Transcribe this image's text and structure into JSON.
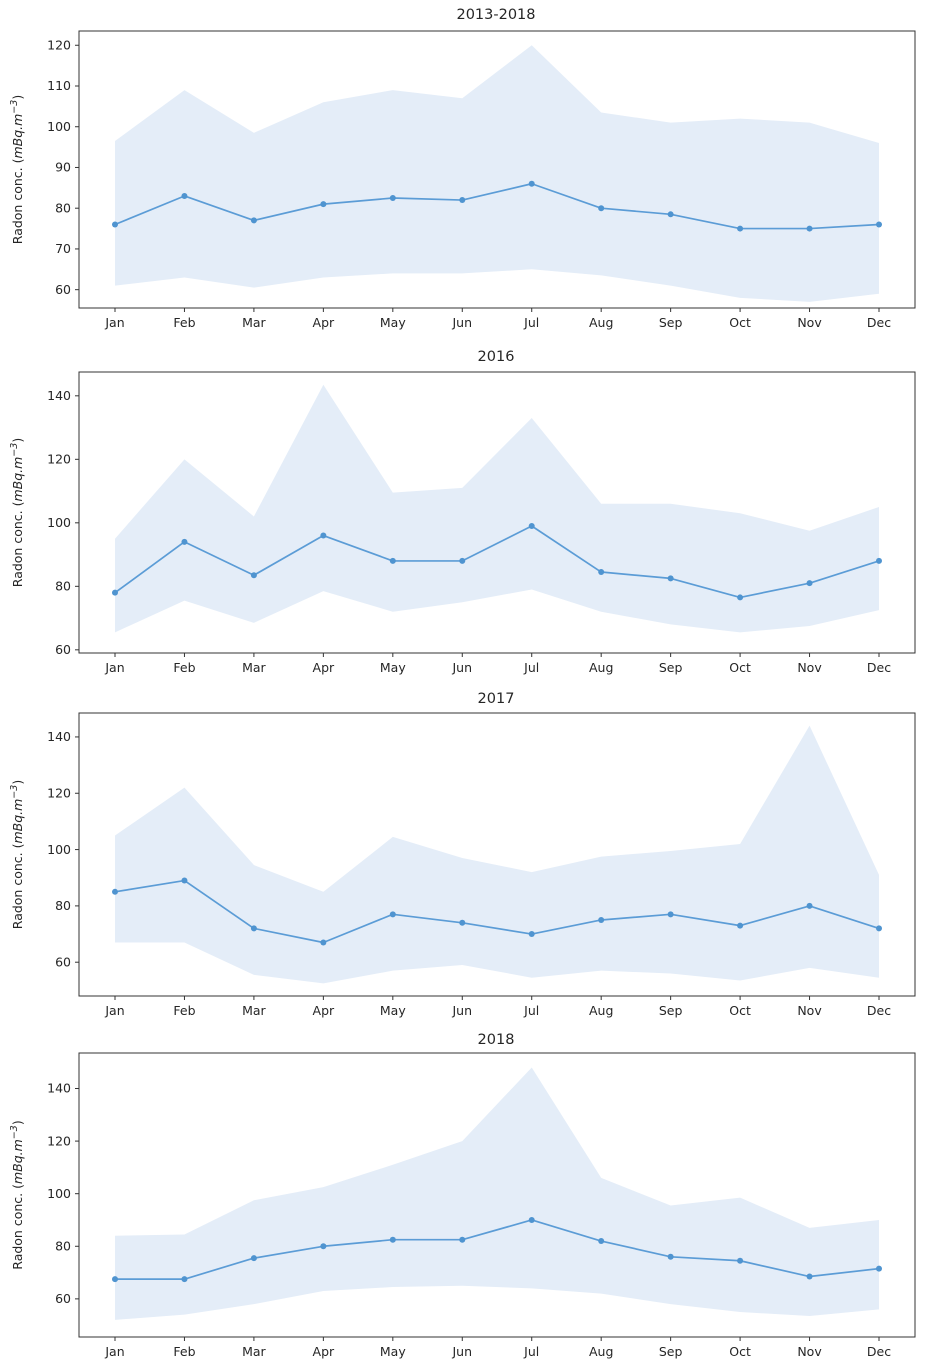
{
  "figure": {
    "background": "#ffffff",
    "description": "Four stacked line charts of monthly radon concentration with shaded min-max confidence bands"
  },
  "style": {
    "line_color": "#5b9cd6",
    "marker_color": "#4f94d0",
    "band_color": "#e4edf8",
    "spine_color": "#333333",
    "text_color": "#262626"
  },
  "ylabel_parts": {
    "prefix": "Radon conc. (",
    "italic": "mBq.m",
    "superscript": "−3",
    "suffix": ")"
  },
  "chart_data": [
    {
      "type": "line",
      "title": "2013-2018",
      "xlabel": "",
      "ylabel": "Radon conc. (mBq.m−3)",
      "categories": [
        "Jan",
        "Feb",
        "Mar",
        "Apr",
        "May",
        "Jun",
        "Jul",
        "Aug",
        "Sep",
        "Oct",
        "Nov",
        "Dec"
      ],
      "series": [
        {
          "name": "mean",
          "values": [
            76,
            83,
            77,
            81,
            82.5,
            82,
            86,
            80,
            78.5,
            75,
            75,
            76
          ]
        },
        {
          "name": "upper_bound",
          "values": [
            96.5,
            109,
            98.5,
            106,
            109,
            107,
            120,
            103.5,
            101,
            102,
            101,
            96
          ]
        },
        {
          "name": "lower_bound",
          "values": [
            61,
            63,
            60.5,
            63,
            64,
            64,
            65,
            63.5,
            61,
            58,
            57,
            59
          ]
        }
      ],
      "yticks": [
        60,
        70,
        80,
        90,
        100,
        110,
        120
      ],
      "ylim": [
        55.5,
        123.5
      ],
      "grid": false,
      "legend": "none",
      "band": "shaded area between lower_bound and upper_bound"
    },
    {
      "type": "line",
      "title": "2016",
      "xlabel": "",
      "ylabel": "Radon conc. (mBq.m−3)",
      "categories": [
        "Jan",
        "Feb",
        "Mar",
        "Apr",
        "May",
        "Jun",
        "Jul",
        "Aug",
        "Sep",
        "Oct",
        "Nov",
        "Dec"
      ],
      "series": [
        {
          "name": "mean",
          "values": [
            78,
            94,
            83.5,
            96,
            88,
            88,
            99,
            84.5,
            82.5,
            76.5,
            81,
            88
          ]
        },
        {
          "name": "upper_bound",
          "values": [
            95,
            120,
            102,
            143.5,
            109.5,
            111,
            133,
            106,
            106,
            103,
            97.5,
            105
          ]
        },
        {
          "name": "lower_bound",
          "values": [
            65.5,
            75.5,
            68.5,
            78.5,
            72,
            75,
            79,
            72,
            68,
            65.5,
            67.5,
            72.5
          ]
        }
      ],
      "yticks": [
        60,
        80,
        100,
        120,
        140
      ],
      "ylim": [
        59,
        147.5
      ],
      "grid": false,
      "legend": "none",
      "band": "shaded area between lower_bound and upper_bound"
    },
    {
      "type": "line",
      "title": "2017",
      "xlabel": "",
      "ylabel": "Radon conc. (mBq.m−3)",
      "categories": [
        "Jan",
        "Feb",
        "Mar",
        "Apr",
        "May",
        "Jun",
        "Jul",
        "Aug",
        "Sep",
        "Oct",
        "Nov",
        "Dec"
      ],
      "series": [
        {
          "name": "mean",
          "values": [
            85,
            89,
            72,
            67,
            77,
            74,
            70,
            75,
            77,
            73,
            80,
            72
          ]
        },
        {
          "name": "upper_bound",
          "values": [
            105,
            122,
            94.5,
            85,
            104.5,
            97,
            92,
            97.5,
            99.5,
            102,
            144,
            91
          ]
        },
        {
          "name": "lower_bound",
          "values": [
            67,
            67,
            55.5,
            52.5,
            57,
            59,
            54.5,
            57,
            56,
            53.5,
            58,
            54.5
          ]
        }
      ],
      "yticks": [
        60,
        80,
        100,
        120,
        140
      ],
      "ylim": [
        48,
        148.5
      ],
      "grid": false,
      "legend": "none",
      "band": "shaded area between lower_bound and upper_bound"
    },
    {
      "type": "line",
      "title": "2018",
      "xlabel": "",
      "ylabel": "Radon conc. (mBq.m−3)",
      "categories": [
        "Jan",
        "Feb",
        "Mar",
        "Apr",
        "May",
        "Jun",
        "Jul",
        "Aug",
        "Sep",
        "Oct",
        "Nov",
        "Dec"
      ],
      "series": [
        {
          "name": "mean",
          "values": [
            67.5,
            67.5,
            75.5,
            80,
            82.5,
            82.5,
            90,
            82,
            76,
            74.5,
            68.5,
            71.5
          ]
        },
        {
          "name": "upper_bound",
          "values": [
            84,
            84.5,
            97.5,
            102.5,
            111,
            120,
            148,
            106,
            95.5,
            98.5,
            87,
            90
          ]
        },
        {
          "name": "lower_bound",
          "values": [
            52,
            54,
            58,
            63,
            64.5,
            65,
            64,
            62,
            58,
            55,
            53.5,
            56
          ]
        }
      ],
      "yticks": [
        60,
        80,
        100,
        120,
        140
      ],
      "ylim": [
        45.5,
        153.5
      ],
      "grid": false,
      "legend": "none",
      "band": "shaded area between lower_bound and upper_bound"
    }
  ]
}
